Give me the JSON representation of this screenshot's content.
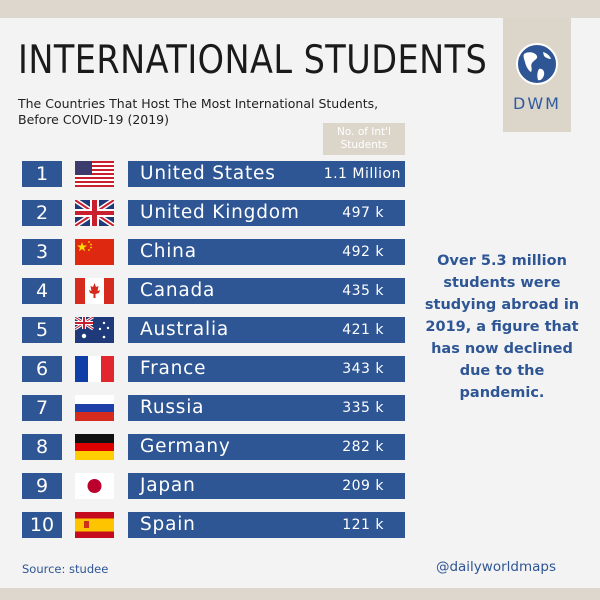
{
  "header": {
    "title": "INTERNATIONAL STUDENTS",
    "subtitle": "The Countries That Host The Most International Students, Before COVID-19 (2019)",
    "logo_text": "DWM"
  },
  "column_header": "No. of Int'l Students",
  "rows": [
    {
      "rank": "1",
      "country": "United States",
      "value": "1.1 Million",
      "flag": "us-flag"
    },
    {
      "rank": "2",
      "country": "United Kingdom",
      "value": "497 k",
      "flag": "uk-flag"
    },
    {
      "rank": "3",
      "country": "China",
      "value": "492 k",
      "flag": "china-flag"
    },
    {
      "rank": "4",
      "country": "Canada",
      "value": "435 k",
      "flag": "canada-flag"
    },
    {
      "rank": "5",
      "country": "Australia",
      "value": "421 k",
      "flag": "australia-flag"
    },
    {
      "rank": "6",
      "country": "France",
      "value": "343 k",
      "flag": "france-flag"
    },
    {
      "rank": "7",
      "country": "Russia",
      "value": "335 k",
      "flag": "russia-flag"
    },
    {
      "rank": "8",
      "country": "Germany",
      "value": "282 k",
      "flag": "germany-flag"
    },
    {
      "rank": "9",
      "country": "Japan",
      "value": "209 k",
      "flag": "japan-flag"
    },
    {
      "rank": "10",
      "country": "Spain",
      "value": "121 k",
      "flag": "spain-flag"
    }
  ],
  "side_note": "Over 5.3 million students were studying abroad in 2019, a figure that has now declined due to the pandemic.",
  "footer": {
    "source": "Source: studee",
    "handle": "@dailyworldmaps"
  },
  "colors": {
    "bar": "#2e5594",
    "background": "#f3f3f3",
    "frame": "#ddd7cd",
    "accent_box": "#dcd6ca"
  }
}
